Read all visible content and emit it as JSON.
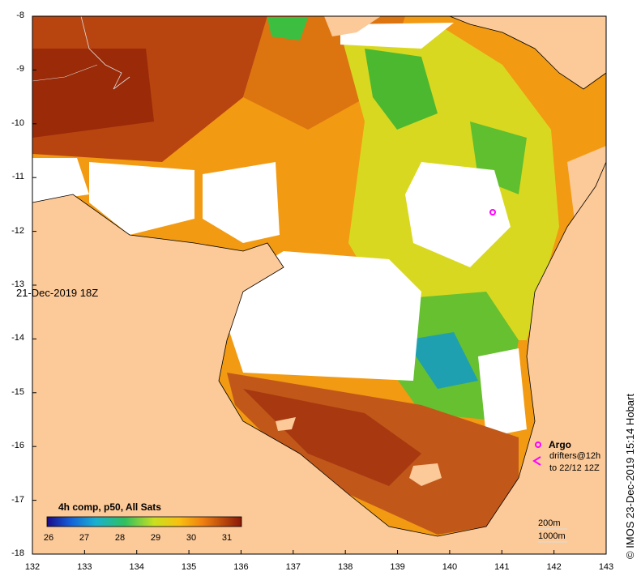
{
  "stamp": "21-Dec-2019 18Z",
  "credit": "© IMOS 23-Dec-2019 15:14 Hobart",
  "colorbar": {
    "title": "4h comp, p50, All Sats",
    "ticks": [
      "26",
      "27",
      "28",
      "29",
      "30",
      "31"
    ]
  },
  "axes": {
    "x_ticks": [
      "132",
      "133",
      "134",
      "135",
      "136",
      "137",
      "138",
      "139",
      "140",
      "141",
      "142",
      "143"
    ],
    "y_ticks": [
      "-8",
      "-9",
      "-10",
      "-11",
      "-12",
      "-13",
      "-14",
      "-15",
      "-16",
      "-17",
      "-18"
    ]
  },
  "legend": {
    "argo": "Argo",
    "drifters_line1": "drifters@12h",
    "drifters_line2": "to 22/12 12Z",
    "contour_200": "200m",
    "contour_1000": "1000m"
  },
  "colors": {
    "land": "#fcc998",
    "missing": "#ffffff",
    "argo_marker": "#ff00ff"
  }
}
